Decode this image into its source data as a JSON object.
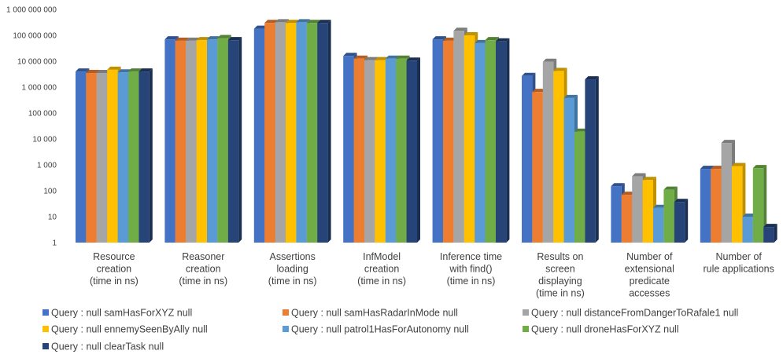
{
  "chart_data": {
    "type": "bar",
    "style": "3d-clustered-column",
    "y_scale": "log",
    "ylim": [
      1,
      1000000000
    ],
    "yticks": [
      1,
      10,
      100,
      1000,
      10000,
      100000,
      1000000,
      10000000,
      100000000,
      1000000000
    ],
    "ytick_labels": [
      "1",
      "10",
      "100",
      "1 000",
      "10 000",
      "100 000",
      "1 000 000",
      "10 000 000",
      "100 000 000",
      "1 000 000 000"
    ],
    "grid": false,
    "legend_position": "bottom",
    "categories": [
      [
        "Resource",
        "creation",
        "(time in ns)"
      ],
      [
        "Reasoner",
        "creation",
        "(time in ns)"
      ],
      [
        "Assertions",
        "loading",
        "(time in ns)"
      ],
      [
        "InfModel",
        "creation",
        "(time in ns)"
      ],
      [
        "Inference time",
        "with find()",
        "(time in ns)"
      ],
      [
        "Results on",
        "screen",
        "displaying",
        "(time in ns)"
      ],
      [
        "Number of",
        "extensional",
        "predicate",
        "accesses"
      ],
      [
        "Number of",
        "rule applications"
      ]
    ],
    "series": [
      {
        "name": "Query : null samHasForXYZ null",
        "color": "#4472C4",
        "side": "#2F528F",
        "values": [
          4000000,
          70000000,
          180000000,
          16000000,
          70000000,
          2700000,
          150,
          700
        ]
      },
      {
        "name": "Query : null samHasRadarInMode null",
        "color": "#ED7D31",
        "side": "#B35E24",
        "values": [
          3500000,
          62000000,
          300000000,
          12500000,
          62000000,
          650000,
          70,
          700
        ]
      },
      {
        "name": "Query : null distanceFromDangerToRafale1  null",
        "color": "#A5A5A5",
        "side": "#7C7C7C",
        "values": [
          3500000,
          62000000,
          320000000,
          11000000,
          150000000,
          9500000,
          360,
          7000
        ]
      },
      {
        "name": "Query : null ennemySeenByAlly  null",
        "color": "#FFC000",
        "side": "#BF9000",
        "values": [
          4700000,
          65000000,
          300000000,
          11000000,
          100000000,
          4200000,
          260,
          900
        ]
      },
      {
        "name": "Query : null patrol1HasForAutonomy   null",
        "color": "#5B9BD5",
        "side": "#41739F",
        "values": [
          3700000,
          70000000,
          320000000,
          12500000,
          50000000,
          380000,
          22,
          10
        ]
      },
      {
        "name": "Query : null droneHasForXYZ   null",
        "color": "#70AD47",
        "side": "#538135",
        "values": [
          4000000,
          78000000,
          300000000,
          12500000,
          65000000,
          19000,
          110,
          750
        ]
      },
      {
        "name": "Query : null clearTask   null",
        "color": "#264478",
        "side": "#1A2F53",
        "values": [
          4000000,
          65000000,
          300000000,
          10500000,
          58000000,
          2000000,
          37,
          4
        ]
      }
    ]
  }
}
